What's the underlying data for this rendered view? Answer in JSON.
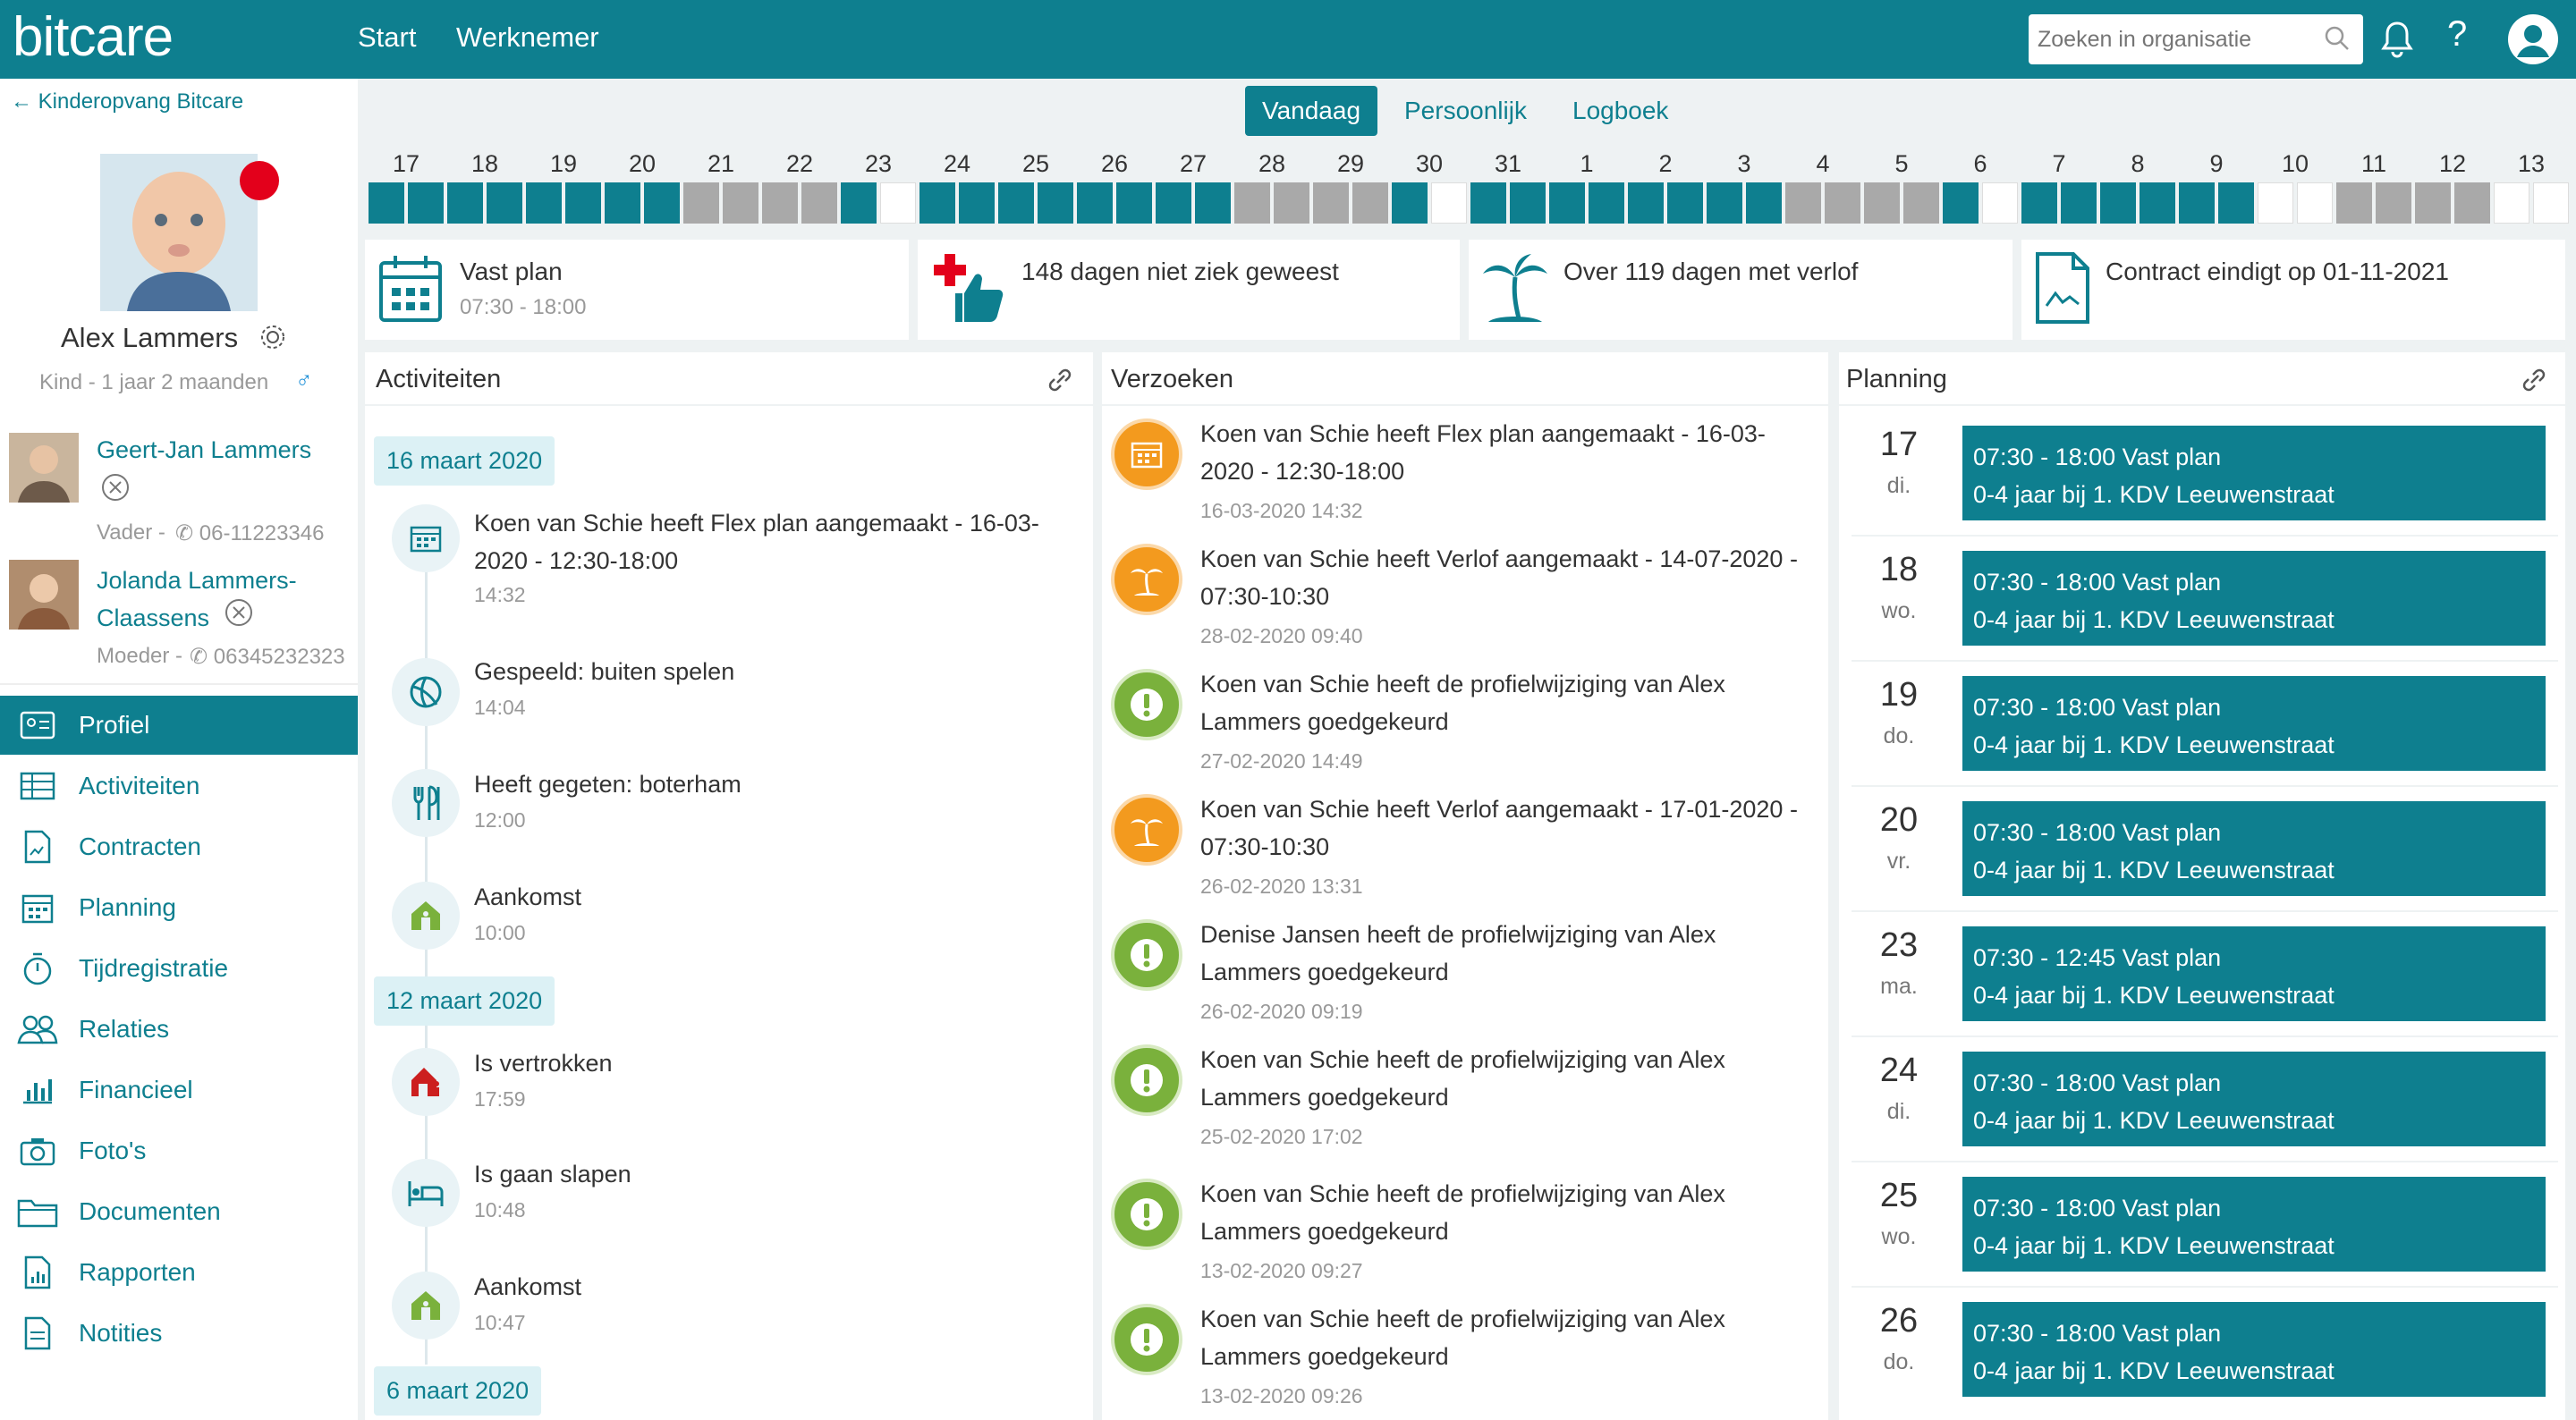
{
  "header": {
    "logo": "bitcare",
    "nav": [
      "Start",
      "Werknemer"
    ],
    "search_placeholder": "Zoeken in organisatie"
  },
  "sidebar": {
    "back_label": "Kinderopvang Bitcare",
    "child_name": "Alex Lammers",
    "child_sub": "Kind - 1 jaar 2 maanden",
    "relations": [
      {
        "name_lines": [
          "Geert-Jan Lammers"
        ],
        "role": "Vader -",
        "phone": "06-11223346"
      },
      {
        "name_lines": [
          "Jolanda Lammers-",
          "Claassens"
        ],
        "role": "Moeder -",
        "phone": "06345232323"
      }
    ],
    "menu": [
      "Profiel",
      "Activiteiten",
      "Contracten",
      "Planning",
      "Tijdregistratie",
      "Relaties",
      "Financieel",
      "Foto's",
      "Documenten",
      "Rapporten",
      "Notities"
    ]
  },
  "tabs": [
    "Vandaag",
    "Persoonlijk",
    "Logboek"
  ],
  "calendar": {
    "days": [
      "17",
      "18",
      "19",
      "20",
      "21",
      "22",
      "23",
      "24",
      "25",
      "26",
      "27",
      "28",
      "29",
      "30",
      "31",
      "1",
      "2",
      "3",
      "4",
      "5",
      "6",
      "7",
      "8",
      "9",
      "10",
      "11",
      "12",
      "13"
    ],
    "cells": [
      "ff",
      "ff",
      "ff",
      "ff",
      "gg",
      "gg",
      "fe",
      "ff",
      "ff",
      "ff",
      "ff",
      "gg",
      "gg",
      "fe",
      "ff",
      "ff",
      "ff",
      "ff",
      "gg",
      "gg",
      "fe",
      "ff",
      "ff",
      "ff",
      "ee",
      "gg",
      "gg",
      "ee"
    ]
  },
  "info_cards": [
    {
      "title": "Vast plan",
      "sub": "07:30 - 18:00"
    },
    {
      "title": "148 dagen niet ziek geweest"
    },
    {
      "title": "Over 119 dagen met verlof"
    },
    {
      "title": "Contract eindigt op 01-11-2021"
    }
  ],
  "activiteiten": {
    "title": "Activiteiten",
    "dates": [
      "16 maart 2020",
      "12 maart 2020",
      "6 maart 2020"
    ],
    "items": [
      {
        "lines": [
          "Koen van Schie heeft Flex plan aangemaakt - 16-03-",
          "2020 - 12:30-18:00"
        ],
        "time": "14:32"
      },
      {
        "lines": [
          "Gespeeld: buiten spelen"
        ],
        "time": "14:04"
      },
      {
        "lines": [
          "Heeft gegeten: boterham"
        ],
        "time": "12:00"
      },
      {
        "lines": [
          "Aankomst"
        ],
        "time": "10:00"
      },
      {
        "lines": [
          "Is vertrokken"
        ],
        "time": "17:59"
      },
      {
        "lines": [
          "Is gaan slapen"
        ],
        "time": "10:48"
      },
      {
        "lines": [
          "Aankomst"
        ],
        "time": "10:47"
      }
    ]
  },
  "verzoeken": {
    "title": "Verzoeken",
    "items": [
      {
        "lines": [
          "Koen van Schie heeft Flex plan aangemaakt - 16-03-",
          "2020 - 12:30-18:00"
        ],
        "time": "16-03-2020 14:32"
      },
      {
        "lines": [
          "Koen van Schie heeft Verlof aangemaakt - 14-07-2020 -",
          "07:30-10:30"
        ],
        "time": "28-02-2020 09:40"
      },
      {
        "lines": [
          "Koen van Schie heeft de profielwijziging van Alex",
          "Lammers goedgekeurd"
        ],
        "time": "27-02-2020 14:49"
      },
      {
        "lines": [
          "Koen van Schie heeft Verlof aangemaakt - 17-01-2020 -",
          "07:30-10:30"
        ],
        "time": "26-02-2020 13:31"
      },
      {
        "lines": [
          "Denise Jansen heeft de profielwijziging van Alex",
          "Lammers goedgekeurd"
        ],
        "time": "26-02-2020 09:19"
      },
      {
        "lines": [
          "Koen van Schie heeft de profielwijziging van Alex",
          "Lammers goedgekeurd"
        ],
        "time": "25-02-2020 17:02"
      },
      {
        "lines": [
          "Koen van Schie heeft de profielwijziging van Alex",
          "Lammers goedgekeurd"
        ],
        "time": "13-02-2020 09:27"
      },
      {
        "lines": [
          "Koen van Schie heeft de profielwijziging van Alex",
          "Lammers goedgekeurd"
        ],
        "time": "13-02-2020 09:26"
      }
    ]
  },
  "planning": {
    "title": "Planning",
    "items": [
      {
        "day": "17",
        "wd": "di.",
        "l1": "07:30 - 18:00 Vast plan",
        "l2": "0-4 jaar bij 1. KDV Leeuwenstraat"
      },
      {
        "day": "18",
        "wd": "wo.",
        "l1": "07:30 - 18:00 Vast plan",
        "l2": "0-4 jaar bij 1. KDV Leeuwenstraat"
      },
      {
        "day": "19",
        "wd": "do.",
        "l1": "07:30 - 18:00 Vast plan",
        "l2": "0-4 jaar bij 1. KDV Leeuwenstraat"
      },
      {
        "day": "20",
        "wd": "vr.",
        "l1": "07:30 - 18:00 Vast plan",
        "l2": "0-4 jaar bij 1. KDV Leeuwenstraat"
      },
      {
        "day": "23",
        "wd": "ma.",
        "l1": "07:30 - 12:45 Vast plan",
        "l2": "0-4 jaar bij 1. KDV Leeuwenstraat"
      },
      {
        "day": "24",
        "wd": "di.",
        "l1": "07:30 - 18:00 Vast plan",
        "l2": "0-4 jaar bij 1. KDV Leeuwenstraat"
      },
      {
        "day": "25",
        "wd": "wo.",
        "l1": "07:30 - 18:00 Vast plan",
        "l2": "0-4 jaar bij 1. KDV Leeuwenstraat"
      },
      {
        "day": "26",
        "wd": "do.",
        "l1": "07:30 - 18:00 Vast plan",
        "l2": "0-4 jaar bij 1. KDV Leeuwenstraat"
      }
    ]
  }
}
